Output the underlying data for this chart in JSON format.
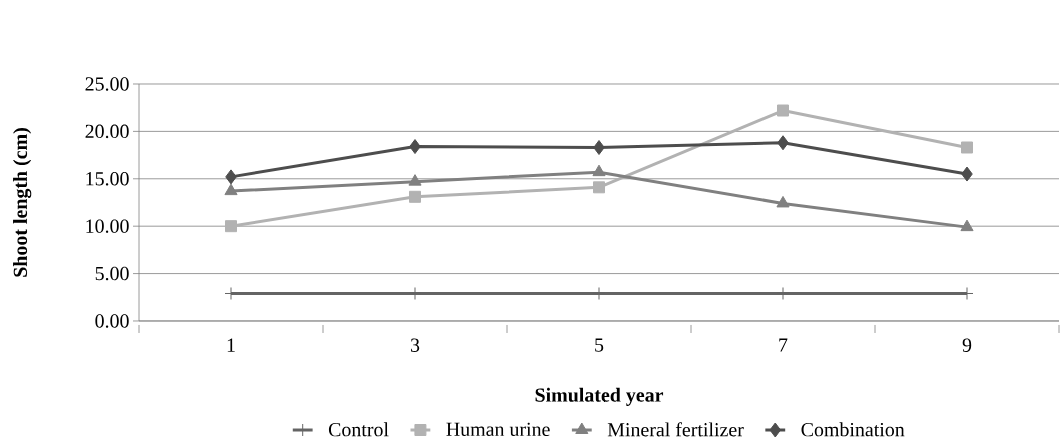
{
  "chart_data": {
    "type": "line",
    "xlabel": "Simulated year",
    "ylabel": "Shoot length (cm)",
    "categories": [
      "1",
      "3",
      "5",
      "7",
      "9"
    ],
    "series": [
      {
        "name": "Control",
        "color": "#646464",
        "marker": "cross",
        "values": [
          2.9,
          2.9,
          2.9,
          2.9,
          2.9
        ]
      },
      {
        "name": "Human urine",
        "color": "#b2b2b2",
        "marker": "square",
        "values": [
          10.0,
          13.1,
          14.1,
          22.2,
          18.3
        ]
      },
      {
        "name": "Mineral fertilizer",
        "color": "#808080",
        "marker": "triangle",
        "values": [
          13.7,
          14.7,
          15.7,
          12.4,
          9.9
        ]
      },
      {
        "name": "Combination",
        "color": "#4d4d4d",
        "marker": "diamond",
        "values": [
          15.2,
          18.4,
          18.3,
          18.8,
          15.5
        ]
      }
    ],
    "ylim": [
      0,
      25
    ],
    "yticks": [
      {
        "value": 0,
        "label": "0.00"
      },
      {
        "value": 5,
        "label": "5.00"
      },
      {
        "value": 10,
        "label": "10.00"
      },
      {
        "value": 15,
        "label": "15.00"
      },
      {
        "value": 20,
        "label": "20.00"
      },
      {
        "value": 25,
        "label": "25.00"
      }
    ],
    "grid": "y",
    "legend": "bottom",
    "line_style": "solid"
  }
}
